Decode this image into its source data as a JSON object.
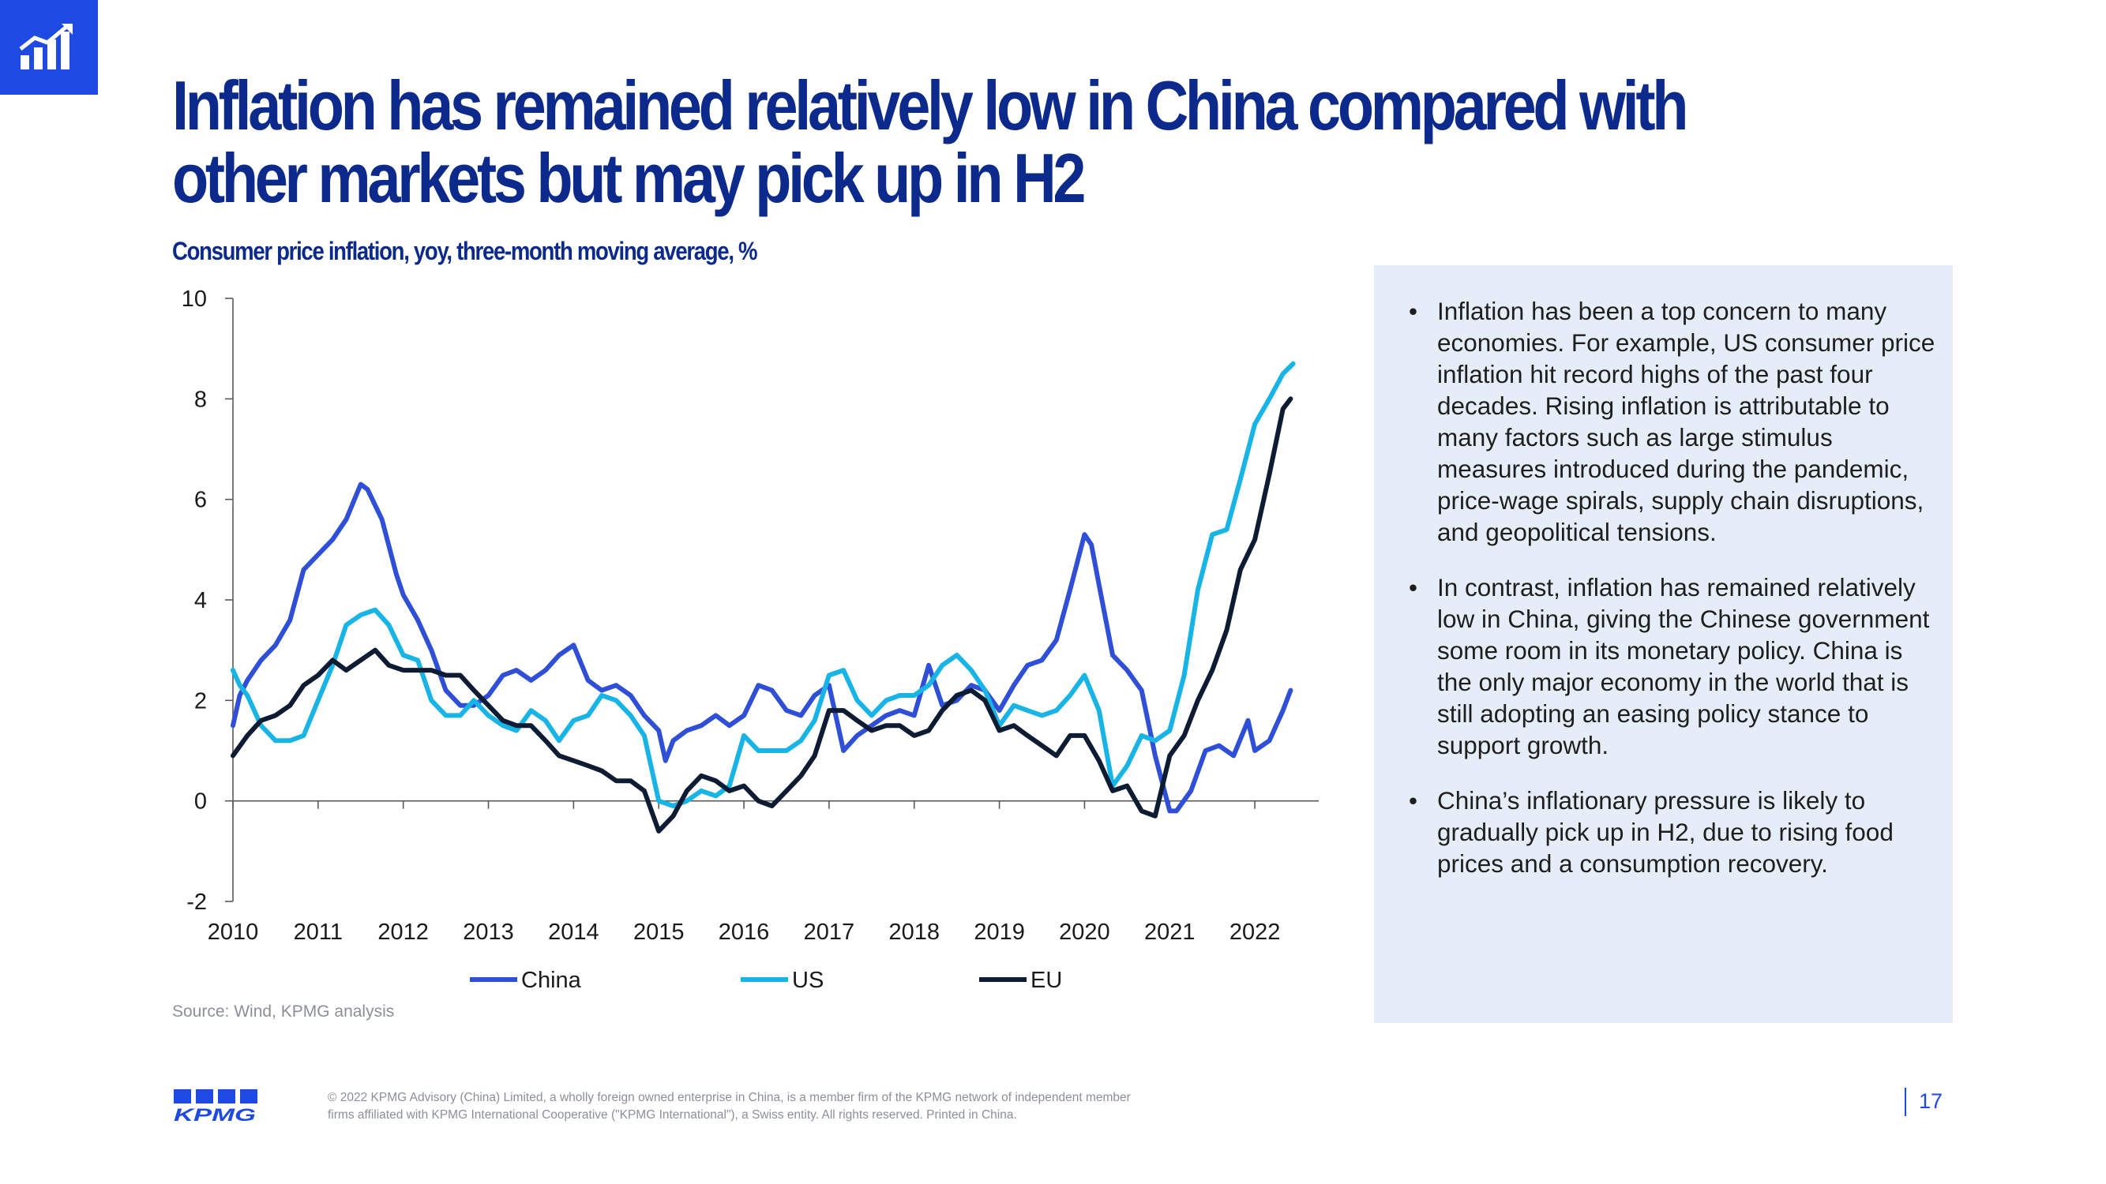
{
  "slide": {
    "title": "Inflation has remained relatively low in China compared with other markets but may pick up in H2",
    "subtitle": "Consumer price inflation, yoy, three-month moving average, %",
    "source": "Source: Wind, KPMG analysis",
    "page_number": "17",
    "logo_text": "KPMG",
    "footer": "© 2022 KPMG Advisory (China) Limited, a wholly foreign owned enterprise in China, is a member firm of the KPMG network of independent member firms affiliated with KPMG International Cooperative (\"KPMG International\"), a Swiss entity. All rights reserved. Printed in China.",
    "bullets": [
      "Inflation has been a top concern to many economies. For example, US consumer price inflation hit record highs of the past four decades. Rising inflation is attributable to many factors such as large stimulus measures introduced during the pandemic, price-wage spirals, supply chain disruptions, and geopolitical tensions.",
      "In contrast, inflation has remained relatively low in China, giving the Chinese government some room in its monetary policy. China is the only major economy in the world that is still adopting an easing policy stance to support growth.",
      "China’s inflationary pressure is likely to gradually pick up in H2, due to rising food prices and a consumption recovery."
    ],
    "colors": {
      "accent": "#1e49e2",
      "title": "#0c2a8c",
      "panel": "#e5eef8"
    }
  },
  "chart_data": {
    "type": "line",
    "title": "Consumer price inflation, yoy, three-month moving average, %",
    "xlabel": "",
    "ylabel": "",
    "xlim": [
      2010,
      2022.75
    ],
    "ylim": [
      -2,
      10
    ],
    "yticks": [
      "-2",
      "0",
      "2",
      "4",
      "6",
      "8",
      "10"
    ],
    "xticks": [
      "2010",
      "2011",
      "2012",
      "2013",
      "2014",
      "2015",
      "2016",
      "2017",
      "2018",
      "2019",
      "2020",
      "2021",
      "2022"
    ],
    "grid": false,
    "legend": "bottom",
    "series": [
      {
        "name": "China",
        "color": "#2f4fd6",
        "points": [
          [
            2010.0,
            1.5
          ],
          [
            2010.08,
            2.1
          ],
          [
            2010.17,
            2.4
          ],
          [
            2010.33,
            2.8
          ],
          [
            2010.5,
            3.1
          ],
          [
            2010.67,
            3.6
          ],
          [
            2010.83,
            4.6
          ],
          [
            2011.0,
            4.9
          ],
          [
            2011.17,
            5.2
          ],
          [
            2011.33,
            5.6
          ],
          [
            2011.5,
            6.3
          ],
          [
            2011.58,
            6.2
          ],
          [
            2011.75,
            5.6
          ],
          [
            2011.92,
            4.5
          ],
          [
            2012.0,
            4.1
          ],
          [
            2012.17,
            3.6
          ],
          [
            2012.33,
            3.0
          ],
          [
            2012.5,
            2.2
          ],
          [
            2012.67,
            1.9
          ],
          [
            2012.83,
            1.9
          ],
          [
            2013.0,
            2.1
          ],
          [
            2013.17,
            2.5
          ],
          [
            2013.33,
            2.6
          ],
          [
            2013.5,
            2.4
          ],
          [
            2013.67,
            2.6
          ],
          [
            2013.83,
            2.9
          ],
          [
            2014.0,
            3.1
          ],
          [
            2014.17,
            2.4
          ],
          [
            2014.33,
            2.2
          ],
          [
            2014.5,
            2.3
          ],
          [
            2014.67,
            2.1
          ],
          [
            2014.83,
            1.7
          ],
          [
            2015.0,
            1.4
          ],
          [
            2015.08,
            0.8
          ],
          [
            2015.17,
            1.2
          ],
          [
            2015.33,
            1.4
          ],
          [
            2015.5,
            1.5
          ],
          [
            2015.67,
            1.7
          ],
          [
            2015.83,
            1.5
          ],
          [
            2016.0,
            1.7
          ],
          [
            2016.17,
            2.3
          ],
          [
            2016.33,
            2.2
          ],
          [
            2016.5,
            1.8
          ],
          [
            2016.67,
            1.7
          ],
          [
            2016.83,
            2.1
          ],
          [
            2017.0,
            2.3
          ],
          [
            2017.17,
            1.0
          ],
          [
            2017.33,
            1.3
          ],
          [
            2017.5,
            1.5
          ],
          [
            2017.67,
            1.7
          ],
          [
            2017.83,
            1.8
          ],
          [
            2018.0,
            1.7
          ],
          [
            2018.17,
            2.7
          ],
          [
            2018.33,
            1.9
          ],
          [
            2018.5,
            2.0
          ],
          [
            2018.67,
            2.3
          ],
          [
            2018.83,
            2.2
          ],
          [
            2019.0,
            1.8
          ],
          [
            2019.17,
            2.3
          ],
          [
            2019.33,
            2.7
          ],
          [
            2019.5,
            2.8
          ],
          [
            2019.67,
            3.2
          ],
          [
            2019.83,
            4.2
          ],
          [
            2020.0,
            5.3
          ],
          [
            2020.08,
            5.1
          ],
          [
            2020.17,
            4.3
          ],
          [
            2020.33,
            2.9
          ],
          [
            2020.5,
            2.6
          ],
          [
            2020.67,
            2.2
          ],
          [
            2020.83,
            0.9
          ],
          [
            2021.0,
            -0.2
          ],
          [
            2021.08,
            -0.2
          ],
          [
            2021.25,
            0.2
          ],
          [
            2021.42,
            1.0
          ],
          [
            2021.58,
            1.1
          ],
          [
            2021.75,
            0.9
          ],
          [
            2021.92,
            1.6
          ],
          [
            2022.0,
            1.0
          ],
          [
            2022.17,
            1.2
          ],
          [
            2022.33,
            1.8
          ],
          [
            2022.42,
            2.2
          ]
        ]
      },
      {
        "name": "US",
        "color": "#19b4e6",
        "points": [
          [
            2010.0,
            2.6
          ],
          [
            2010.08,
            2.3
          ],
          [
            2010.17,
            2.1
          ],
          [
            2010.33,
            1.5
          ],
          [
            2010.5,
            1.2
          ],
          [
            2010.67,
            1.2
          ],
          [
            2010.83,
            1.3
          ],
          [
            2011.0,
            2.0
          ],
          [
            2011.17,
            2.7
          ],
          [
            2011.33,
            3.5
          ],
          [
            2011.5,
            3.7
          ],
          [
            2011.67,
            3.8
          ],
          [
            2011.83,
            3.5
          ],
          [
            2012.0,
            2.9
          ],
          [
            2012.17,
            2.8
          ],
          [
            2012.33,
            2.0
          ],
          [
            2012.5,
            1.7
          ],
          [
            2012.67,
            1.7
          ],
          [
            2012.83,
            2.0
          ],
          [
            2013.0,
            1.7
          ],
          [
            2013.17,
            1.5
          ],
          [
            2013.33,
            1.4
          ],
          [
            2013.5,
            1.8
          ],
          [
            2013.67,
            1.6
          ],
          [
            2013.83,
            1.2
          ],
          [
            2014.0,
            1.6
          ],
          [
            2014.17,
            1.7
          ],
          [
            2014.33,
            2.1
          ],
          [
            2014.5,
            2.0
          ],
          [
            2014.67,
            1.7
          ],
          [
            2014.83,
            1.3
          ],
          [
            2015.0,
            0.0
          ],
          [
            2015.17,
            -0.1
          ],
          [
            2015.33,
            0.0
          ],
          [
            2015.5,
            0.2
          ],
          [
            2015.67,
            0.1
          ],
          [
            2015.83,
            0.3
          ],
          [
            2016.0,
            1.3
          ],
          [
            2016.17,
            1.0
          ],
          [
            2016.33,
            1.0
          ],
          [
            2016.5,
            1.0
          ],
          [
            2016.67,
            1.2
          ],
          [
            2016.83,
            1.6
          ],
          [
            2017.0,
            2.5
          ],
          [
            2017.17,
            2.6
          ],
          [
            2017.33,
            2.0
          ],
          [
            2017.5,
            1.7
          ],
          [
            2017.67,
            2.0
          ],
          [
            2017.83,
            2.1
          ],
          [
            2018.0,
            2.1
          ],
          [
            2018.17,
            2.3
          ],
          [
            2018.33,
            2.7
          ],
          [
            2018.5,
            2.9
          ],
          [
            2018.67,
            2.6
          ],
          [
            2018.83,
            2.2
          ],
          [
            2019.0,
            1.5
          ],
          [
            2019.17,
            1.9
          ],
          [
            2019.33,
            1.8
          ],
          [
            2019.5,
            1.7
          ],
          [
            2019.67,
            1.8
          ],
          [
            2019.83,
            2.1
          ],
          [
            2020.0,
            2.5
          ],
          [
            2020.17,
            1.8
          ],
          [
            2020.33,
            0.3
          ],
          [
            2020.5,
            0.7
          ],
          [
            2020.67,
            1.3
          ],
          [
            2020.83,
            1.2
          ],
          [
            2021.0,
            1.4
          ],
          [
            2021.17,
            2.5
          ],
          [
            2021.33,
            4.2
          ],
          [
            2021.5,
            5.3
          ],
          [
            2021.67,
            5.4
          ],
          [
            2021.83,
            6.4
          ],
          [
            2022.0,
            7.5
          ],
          [
            2022.17,
            8.0
          ],
          [
            2022.33,
            8.5
          ],
          [
            2022.45,
            8.7
          ]
        ]
      },
      {
        "name": "EU",
        "color": "#0d1b33",
        "points": [
          [
            2010.0,
            0.9
          ],
          [
            2010.17,
            1.3
          ],
          [
            2010.33,
            1.6
          ],
          [
            2010.5,
            1.7
          ],
          [
            2010.67,
            1.9
          ],
          [
            2010.83,
            2.3
          ],
          [
            2011.0,
            2.5
          ],
          [
            2011.17,
            2.8
          ],
          [
            2011.33,
            2.6
          ],
          [
            2011.5,
            2.8
          ],
          [
            2011.67,
            3.0
          ],
          [
            2011.83,
            2.7
          ],
          [
            2012.0,
            2.6
          ],
          [
            2012.17,
            2.6
          ],
          [
            2012.33,
            2.6
          ],
          [
            2012.5,
            2.5
          ],
          [
            2012.67,
            2.5
          ],
          [
            2012.83,
            2.2
          ],
          [
            2013.0,
            1.9
          ],
          [
            2013.17,
            1.6
          ],
          [
            2013.33,
            1.5
          ],
          [
            2013.5,
            1.5
          ],
          [
            2013.67,
            1.2
          ],
          [
            2013.83,
            0.9
          ],
          [
            2014.0,
            0.8
          ],
          [
            2014.17,
            0.7
          ],
          [
            2014.33,
            0.6
          ],
          [
            2014.5,
            0.4
          ],
          [
            2014.67,
            0.4
          ],
          [
            2014.83,
            0.2
          ],
          [
            2015.0,
            -0.6
          ],
          [
            2015.17,
            -0.3
          ],
          [
            2015.33,
            0.2
          ],
          [
            2015.5,
            0.5
          ],
          [
            2015.67,
            0.4
          ],
          [
            2015.83,
            0.2
          ],
          [
            2016.0,
            0.3
          ],
          [
            2016.17,
            0.0
          ],
          [
            2016.33,
            -0.1
          ],
          [
            2016.5,
            0.2
          ],
          [
            2016.67,
            0.5
          ],
          [
            2016.83,
            0.9
          ],
          [
            2017.0,
            1.8
          ],
          [
            2017.17,
            1.8
          ],
          [
            2017.33,
            1.6
          ],
          [
            2017.5,
            1.4
          ],
          [
            2017.67,
            1.5
          ],
          [
            2017.83,
            1.5
          ],
          [
            2018.0,
            1.3
          ],
          [
            2018.17,
            1.4
          ],
          [
            2018.33,
            1.8
          ],
          [
            2018.5,
            2.1
          ],
          [
            2018.67,
            2.2
          ],
          [
            2018.83,
            2.0
          ],
          [
            2019.0,
            1.4
          ],
          [
            2019.17,
            1.5
          ],
          [
            2019.33,
            1.3
          ],
          [
            2019.5,
            1.1
          ],
          [
            2019.67,
            0.9
          ],
          [
            2019.83,
            1.3
          ],
          [
            2020.0,
            1.3
          ],
          [
            2020.17,
            0.8
          ],
          [
            2020.33,
            0.2
          ],
          [
            2020.5,
            0.3
          ],
          [
            2020.67,
            -0.2
          ],
          [
            2020.83,
            -0.3
          ],
          [
            2021.0,
            0.9
          ],
          [
            2021.17,
            1.3
          ],
          [
            2021.33,
            2.0
          ],
          [
            2021.5,
            2.6
          ],
          [
            2021.67,
            3.4
          ],
          [
            2021.83,
            4.6
          ],
          [
            2022.0,
            5.2
          ],
          [
            2022.17,
            6.5
          ],
          [
            2022.33,
            7.8
          ],
          [
            2022.42,
            8.0
          ]
        ]
      }
    ]
  }
}
